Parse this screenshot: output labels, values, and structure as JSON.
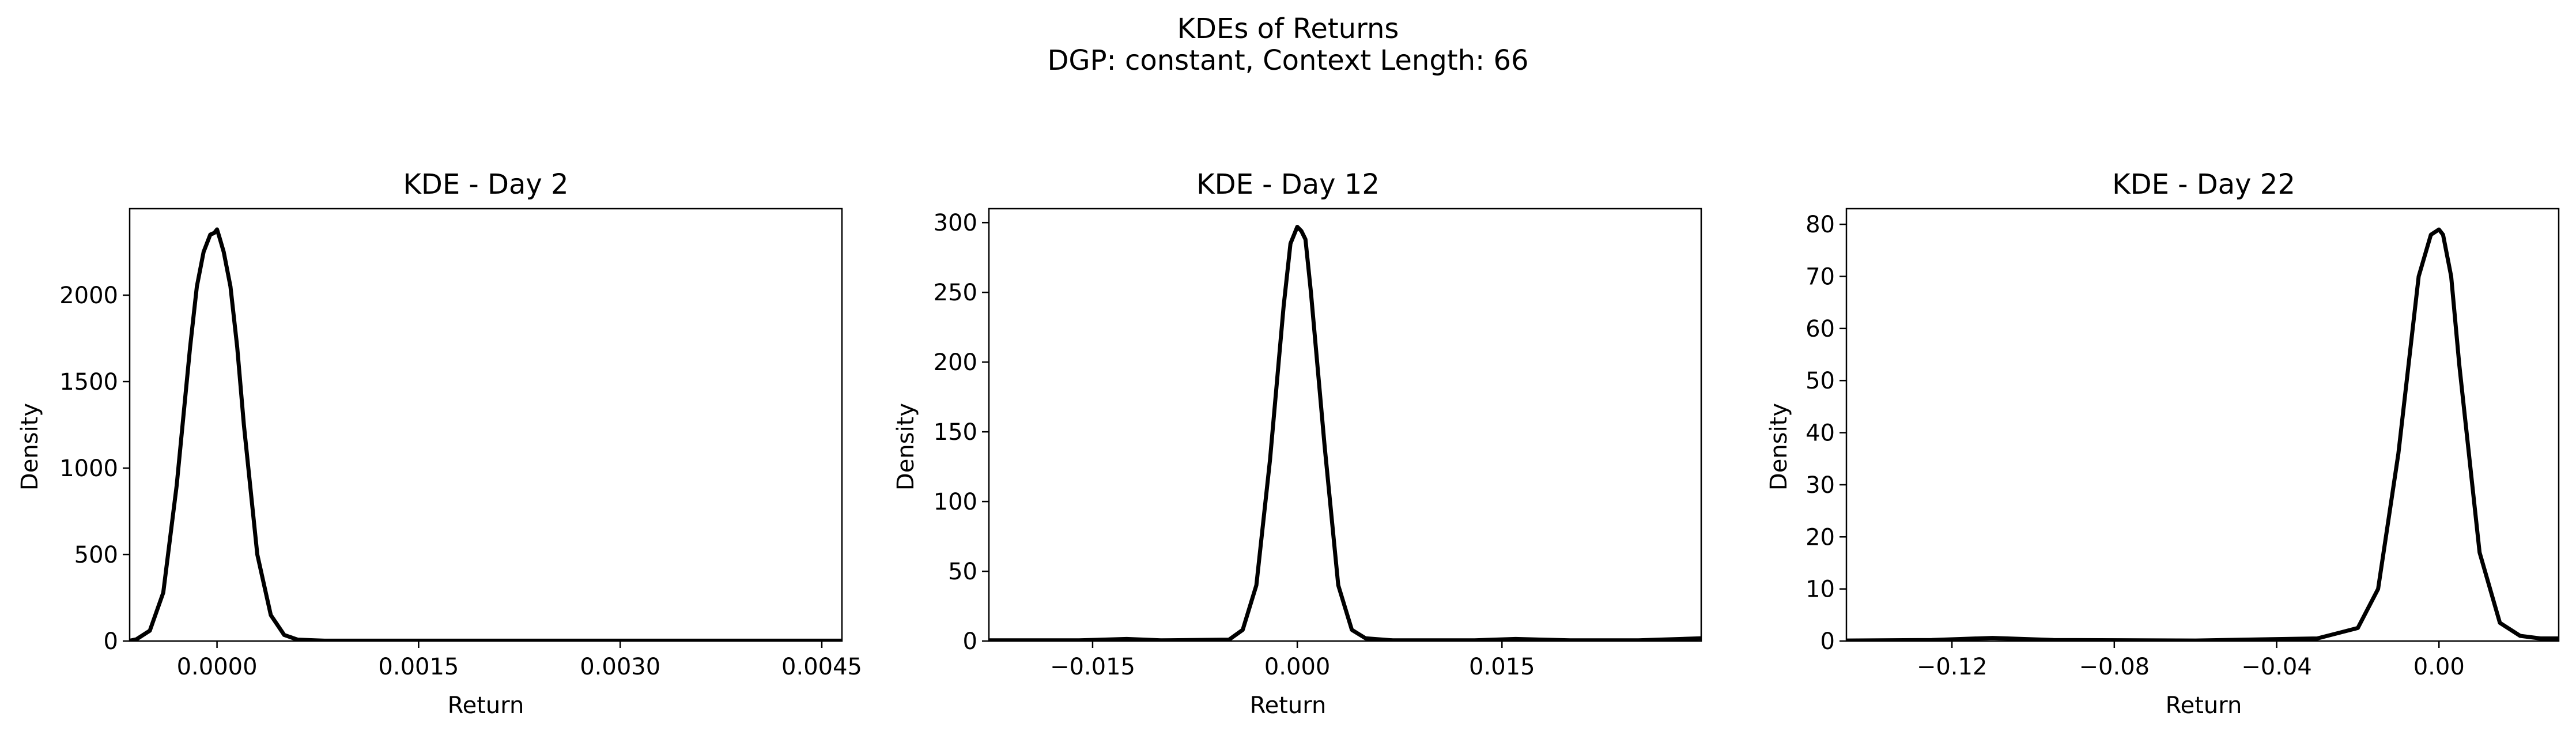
{
  "figure": {
    "title_line1": "KDEs of Returns",
    "title_line2": "DGP: constant, Context Length: 66"
  },
  "chart_data": [
    {
      "type": "line",
      "title": "KDE - Day 2",
      "xlabel": "Return",
      "ylabel": "Density",
      "xlim": [
        -0.00065,
        0.00465
      ],
      "ylim": [
        0,
        2500
      ],
      "xticks": [
        0.0,
        0.0015,
        0.003,
        0.0045
      ],
      "xtick_labels": [
        "0.0000",
        "0.0015",
        "0.0030",
        "0.0045"
      ],
      "yticks": [
        0,
        500,
        1000,
        1500,
        2000
      ],
      "ytick_labels": [
        "0",
        "500",
        "1000",
        "1500",
        "2000"
      ],
      "line_color": "#000000",
      "series": [
        {
          "x": [
            -0.00065,
            -0.0006,
            -0.0005,
            -0.0004,
            -0.0003,
            -0.0002,
            -0.00015,
            -0.0001,
            -5e-05,
            -2e-05,
            0.0,
            2e-05,
            5e-05,
            0.0001,
            0.00015,
            0.0002,
            0.0003,
            0.0004,
            0.0005,
            0.0006,
            0.0008,
            0.0015,
            0.003,
            0.00465
          ],
          "y": [
            2,
            10,
            60,
            280,
            900,
            1700,
            2050,
            2250,
            2350,
            2360,
            2380,
            2330,
            2250,
            2050,
            1700,
            1250,
            500,
            150,
            35,
            8,
            2,
            2,
            2,
            2
          ]
        }
      ]
    },
    {
      "type": "line",
      "title": "KDE - Day 12",
      "xlabel": "Return",
      "ylabel": "Density",
      "xlim": [
        -0.0226,
        0.0296
      ],
      "ylim": [
        0,
        310
      ],
      "xticks": [
        -0.015,
        0.0,
        0.015
      ],
      "xtick_labels": [
        "−0.015",
        "0.000",
        "0.015"
      ],
      "yticks": [
        0,
        50,
        100,
        150,
        200,
        250,
        300
      ],
      "ytick_labels": [
        "0",
        "50",
        "100",
        "150",
        "200",
        "250",
        "300"
      ],
      "line_color": "#000000",
      "series": [
        {
          "x": [
            -0.0226,
            -0.016,
            -0.0125,
            -0.01,
            -0.005,
            -0.004,
            -0.003,
            -0.002,
            -0.001,
            -0.0005,
            0.0,
            0.0003,
            0.0006,
            0.001,
            0.002,
            0.003,
            0.004,
            0.005,
            0.007,
            0.01,
            0.013,
            0.016,
            0.02,
            0.025,
            0.0296
          ],
          "y": [
            0.5,
            0.5,
            1.5,
            0.5,
            1,
            8,
            40,
            130,
            240,
            285,
            297,
            294,
            288,
            250,
            140,
            40,
            8,
            2,
            0.5,
            0.5,
            0.5,
            1.5,
            0.5,
            0.5,
            2
          ]
        }
      ]
    },
    {
      "type": "line",
      "title": "KDE - Day 22",
      "xlabel": "Return",
      "ylabel": "Density",
      "xlim": [
        -0.146,
        0.0295
      ],
      "ylim": [
        0,
        83
      ],
      "xticks": [
        -0.12,
        -0.08,
        -0.04,
        0.0
      ],
      "xtick_labels": [
        "−0.12",
        "−0.08",
        "−0.04",
        "0.00"
      ],
      "yticks": [
        0,
        10,
        20,
        30,
        40,
        50,
        60,
        70,
        80
      ],
      "ytick_labels": [
        "0",
        "10",
        "20",
        "30",
        "40",
        "50",
        "60",
        "70",
        "80"
      ],
      "line_color": "#000000",
      "series": [
        {
          "x": [
            -0.146,
            -0.125,
            -0.11,
            -0.095,
            -0.06,
            -0.03,
            -0.02,
            -0.015,
            -0.01,
            -0.005,
            -0.002,
            0.0,
            0.001,
            0.003,
            0.005,
            0.01,
            0.015,
            0.02,
            0.025,
            0.0295
          ],
          "y": [
            0.1,
            0.2,
            0.6,
            0.2,
            0.1,
            0.5,
            2.5,
            10,
            36,
            70,
            78,
            79,
            78,
            70,
            53,
            17,
            3.5,
            1,
            0.5,
            0.5
          ]
        }
      ]
    }
  ]
}
